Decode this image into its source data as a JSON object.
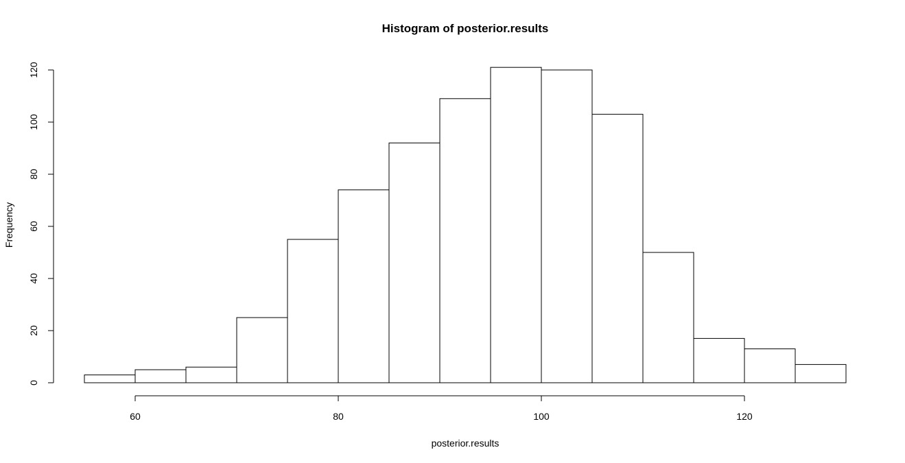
{
  "chart_data": {
    "type": "bar",
    "title": "Histogram of posterior.results",
    "xlabel": "posterior.results",
    "ylabel": "Frequency",
    "bins": [
      {
        "x0": 55,
        "x1": 60,
        "count": 3
      },
      {
        "x0": 60,
        "x1": 65,
        "count": 5
      },
      {
        "x0": 65,
        "x1": 70,
        "count": 6
      },
      {
        "x0": 70,
        "x1": 75,
        "count": 25
      },
      {
        "x0": 75,
        "x1": 80,
        "count": 55
      },
      {
        "x0": 80,
        "x1": 85,
        "count": 74
      },
      {
        "x0": 85,
        "x1": 90,
        "count": 92
      },
      {
        "x0": 90,
        "x1": 95,
        "count": 109
      },
      {
        "x0": 95,
        "x1": 100,
        "count": 121
      },
      {
        "x0": 100,
        "x1": 105,
        "count": 120
      },
      {
        "x0": 105,
        "x1": 110,
        "count": 103
      },
      {
        "x0": 110,
        "x1": 115,
        "count": 50
      },
      {
        "x0": 115,
        "x1": 120,
        "count": 17
      },
      {
        "x0": 120,
        "x1": 125,
        "count": 13
      },
      {
        "x0": 125,
        "x1": 130,
        "count": 7
      }
    ],
    "xticks": [
      60,
      80,
      100,
      120
    ],
    "yticks": [
      0,
      20,
      40,
      60,
      80,
      100,
      120
    ],
    "xlim": [
      55,
      130
    ],
    "ylim": [
      0,
      120
    ],
    "grid": false,
    "colors": {
      "bar_fill": "#ffffff",
      "bar_stroke": "#000000"
    }
  }
}
